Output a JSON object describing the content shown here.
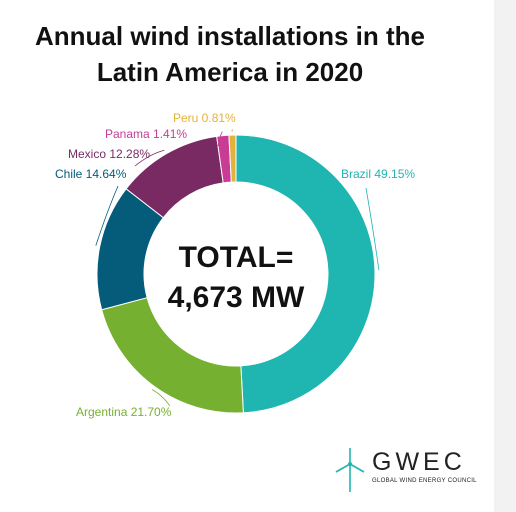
{
  "chart_data": {
    "type": "donut",
    "title_lines": [
      "Annual wind installations in the",
      "Latin America in 2020"
    ],
    "center_text_lines": [
      "TOTAL=",
      "4,673 MW"
    ],
    "legend": "none (slice labels around the ring)",
    "slices": [
      {
        "label": "Brazil",
        "value": 49.15,
        "display": "Brazil 49.15%",
        "color": "#1fb5b1"
      },
      {
        "label": "Argentina",
        "value": 21.7,
        "display": "Argentina 21.70%",
        "color": "#76b030"
      },
      {
        "label": "Chile",
        "value": 14.64,
        "display": "Chile 14.64%",
        "color": "#045b7a"
      },
      {
        "label": "Mexico",
        "value": 12.28,
        "display": "Mexico 12.28%",
        "color": "#7a2a63"
      },
      {
        "label": "Panama",
        "value": 1.41,
        "display": "Panama 1.41%",
        "color": "#c83c96"
      },
      {
        "label": "Peru",
        "value": 0.81,
        "display": "Peru 0.81%",
        "color": "#e3b23c"
      }
    ]
  },
  "logo": {
    "name": "GWEC",
    "subtitle": "GLOBAL WIND ENERGY COUNCIL",
    "icon": "wind-turbine-icon",
    "color": "#1fb5b1"
  }
}
